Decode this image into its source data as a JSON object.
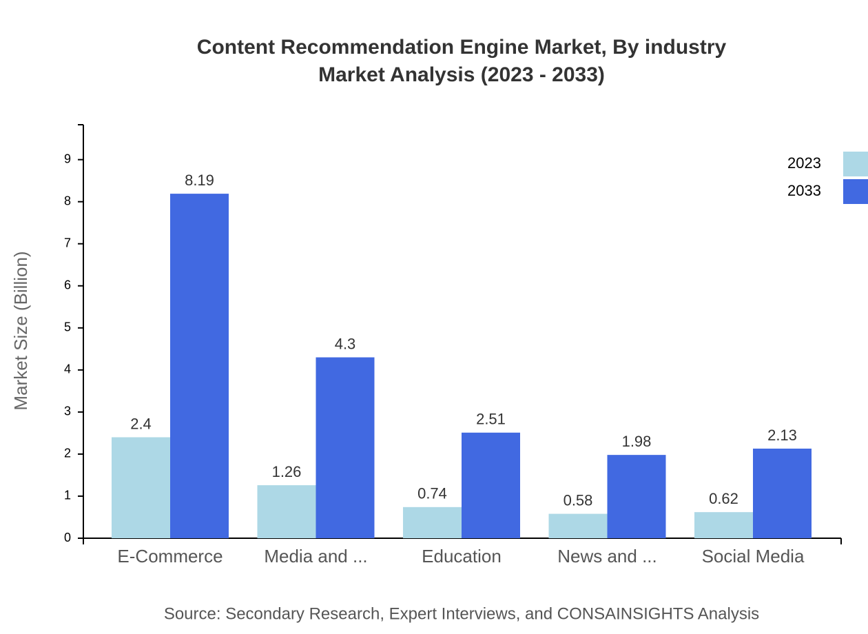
{
  "chart_data": {
    "type": "bar",
    "title": "Content Recommendation Engine Market, By industry",
    "subtitle": "Market Analysis (2023 - 2033)",
    "y_label": "Market Size (Billion)",
    "source": "Source: Secondary Research, Expert Interviews, and CONSAINSIGHTS Analysis",
    "categories": [
      "E-Commerce",
      "Media and ...",
      "Education",
      "News and ...",
      "Social Media"
    ],
    "series": [
      {
        "name": "2023",
        "color": "#add8e6",
        "values": [
          2.4,
          1.26,
          0.74,
          0.58,
          0.62
        ]
      },
      {
        "name": "2033",
        "color": "#4169e1",
        "values": [
          8.19,
          4.3,
          2.51,
          1.98,
          2.13
        ]
      }
    ],
    "ylim": [
      0,
      9.83
    ],
    "yticks": [
      0,
      1,
      2,
      3,
      4,
      5,
      6,
      7,
      8,
      9
    ],
    "legend": "top-right"
  }
}
